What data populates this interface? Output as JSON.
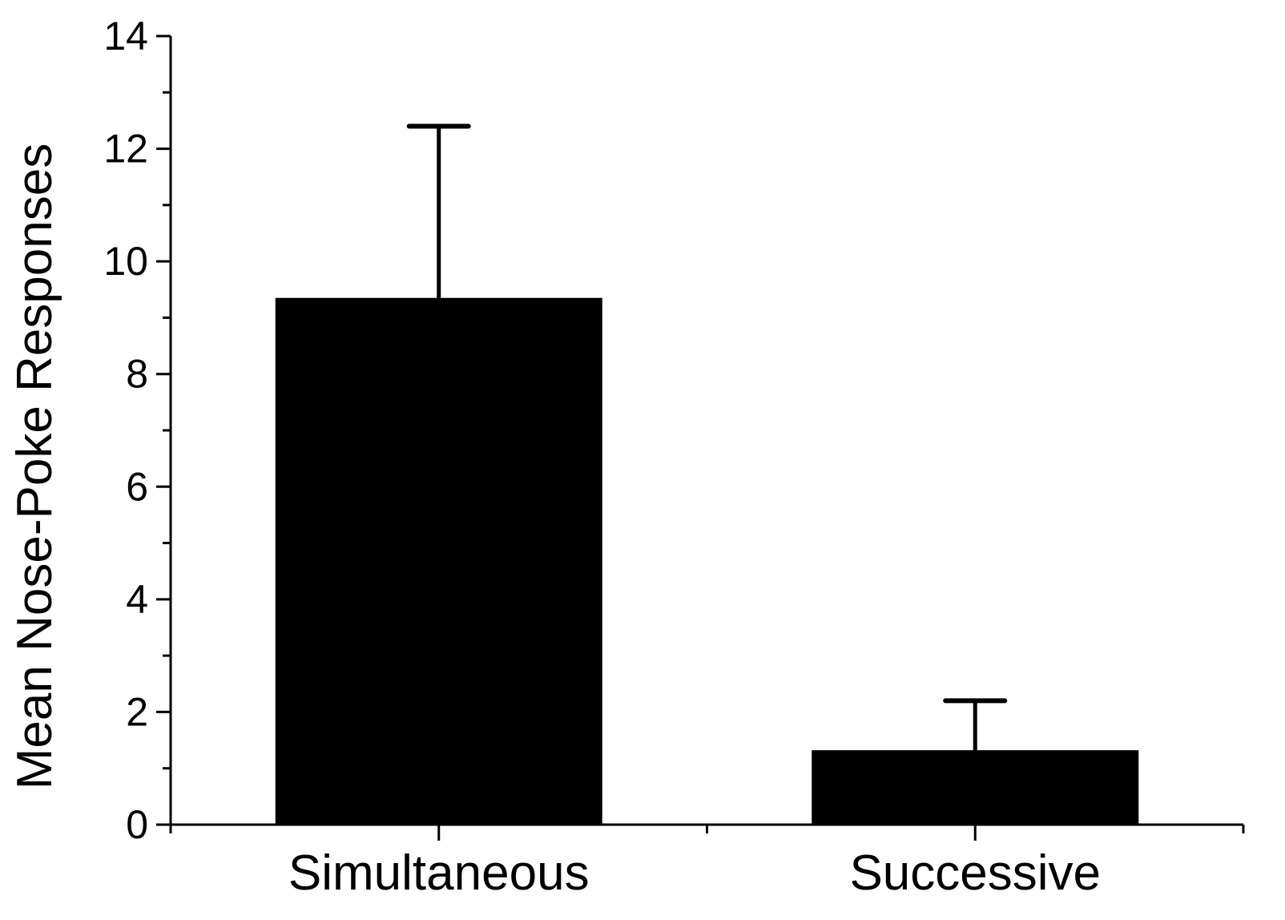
{
  "chart_data": {
    "type": "bar",
    "title": "",
    "xlabel": "",
    "ylabel": "Mean Nose-Poke Responses",
    "categories": [
      "Simultaneous",
      "Successive"
    ],
    "values": [
      9.33,
      1.3
    ],
    "error_upper": [
      12.4,
      2.2
    ],
    "ylim": [
      0,
      14
    ],
    "yticks": [
      "0",
      "2",
      "4",
      "6",
      "8",
      "10",
      "12",
      "14"
    ],
    "grid": false,
    "legend": "none",
    "bar_color": "#000000"
  }
}
